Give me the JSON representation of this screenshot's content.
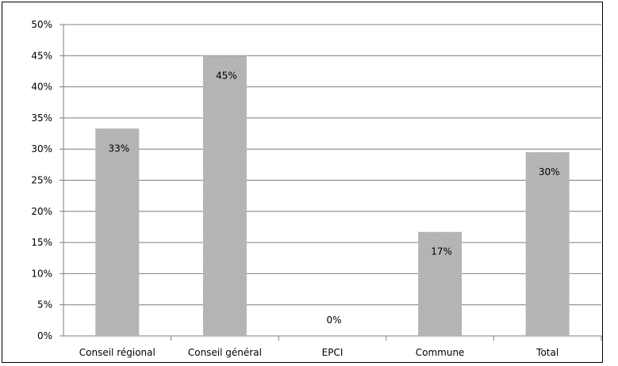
{
  "chart_data": {
    "type": "bar",
    "categories": [
      "Conseil régional",
      "Conseil général",
      "EPCI",
      "Commune",
      "Total"
    ],
    "values": [
      33.3,
      45,
      0,
      16.7,
      29.5
    ],
    "data_labels": [
      "33%",
      "45%",
      "0%",
      "17%",
      "30%"
    ],
    "ylim": [
      0,
      50
    ],
    "y_ticks": [
      0,
      5,
      10,
      15,
      20,
      25,
      30,
      35,
      40,
      45,
      50
    ],
    "y_tick_labels": [
      "0%",
      "5%",
      "10%",
      "15%",
      "20%",
      "25%",
      "30%",
      "35%",
      "40%",
      "45%",
      "50%"
    ],
    "grid": true,
    "legend": "none",
    "bar_color": "#b3b3b3",
    "grid_color": "#7f7f7f",
    "axis_color": "#7f7f7f"
  }
}
